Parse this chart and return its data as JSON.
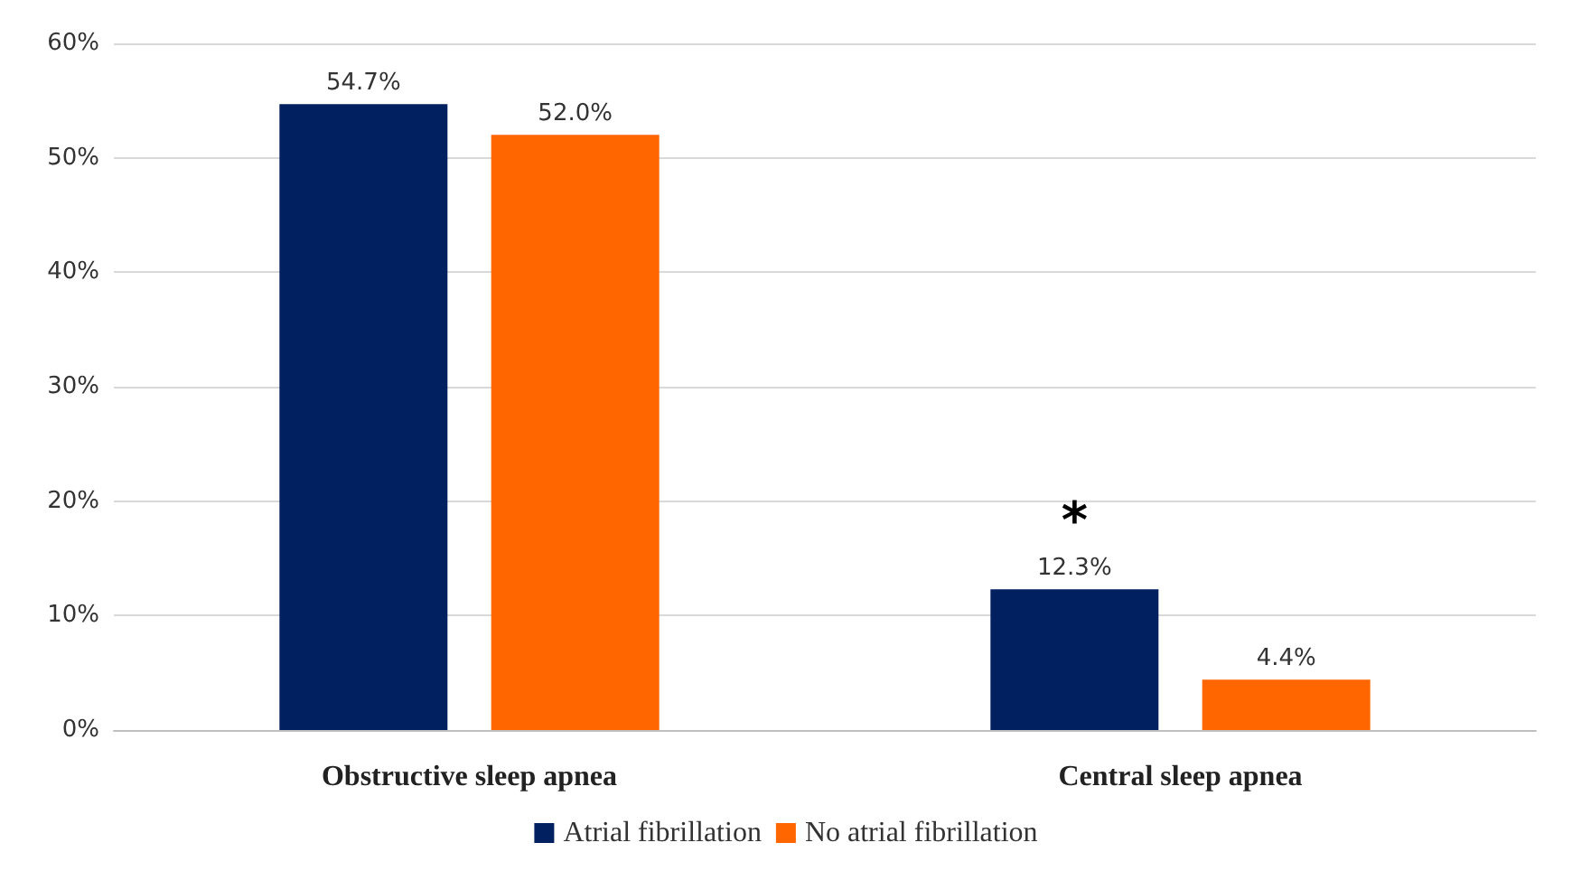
{
  "chart_data": {
    "type": "bar",
    "categories": [
      "Obstructive sleep apnea",
      "Central sleep apnea"
    ],
    "series": [
      {
        "name": "Atrial fibrillation",
        "color": "#002060",
        "values": [
          54.7,
          12.3
        ],
        "value_labels": [
          "54.7%",
          "12.3%"
        ]
      },
      {
        "name": "No atrial fibrillation",
        "color": "#ff6600",
        "values": [
          52.0,
          4.4
        ],
        "value_labels": [
          "52.0%",
          "4.4%"
        ]
      }
    ],
    "ylim": [
      0,
      60
    ],
    "yticks": [
      {
        "value": 0,
        "label": "0%"
      },
      {
        "value": 10,
        "label": "10%"
      },
      {
        "value": 20,
        "label": "20%"
      },
      {
        "value": 30,
        "label": "30%"
      },
      {
        "value": 40,
        "label": "40%"
      },
      {
        "value": 50,
        "label": "50%"
      },
      {
        "value": 60,
        "label": "60%"
      }
    ],
    "grid": "y",
    "legend": "bottom",
    "annotations": [
      "*"
    ]
  }
}
